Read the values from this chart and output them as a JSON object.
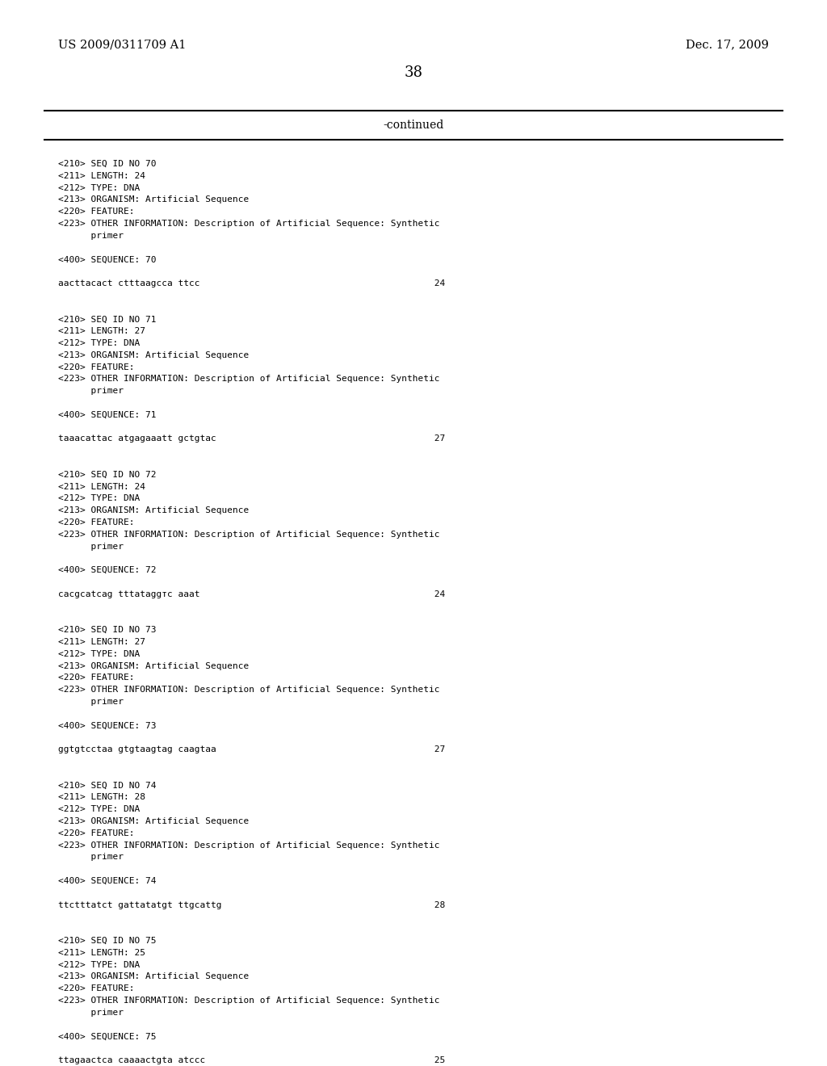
{
  "bg_color": "#ffffff",
  "header_left": "US 2009/0311709 A1",
  "header_right": "Dec. 17, 2009",
  "page_number": "38",
  "continued_text": "-continued",
  "content": [
    "<210> SEQ ID NO 70",
    "<211> LENGTH: 24",
    "<212> TYPE: DNA",
    "<213> ORGANISM: Artificial Sequence",
    "<220> FEATURE:",
    "<223> OTHER INFORMATION: Description of Artificial Sequence: Synthetic",
    "      primer",
    "",
    "<400> SEQUENCE: 70",
    "",
    "aacttacact ctttaagcca ttcc                                           24",
    "",
    "",
    "<210> SEQ ID NO 71",
    "<211> LENGTH: 27",
    "<212> TYPE: DNA",
    "<213> ORGANISM: Artificial Sequence",
    "<220> FEATURE:",
    "<223> OTHER INFORMATION: Description of Artificial Sequence: Synthetic",
    "      primer",
    "",
    "<400> SEQUENCE: 71",
    "",
    "taaacattac atgagaaatt gctgtac                                        27",
    "",
    "",
    "<210> SEQ ID NO 72",
    "<211> LENGTH: 24",
    "<212> TYPE: DNA",
    "<213> ORGANISM: Artificial Sequence",
    "<220> FEATURE:",
    "<223> OTHER INFORMATION: Description of Artificial Sequence: Synthetic",
    "      primer",
    "",
    "<400> SEQUENCE: 72",
    "",
    "cacgcatcag tttataggтc aaat                                           24",
    "",
    "",
    "<210> SEQ ID NO 73",
    "<211> LENGTH: 27",
    "<212> TYPE: DNA",
    "<213> ORGANISM: Artificial Sequence",
    "<220> FEATURE:",
    "<223> OTHER INFORMATION: Description of Artificial Sequence: Synthetic",
    "      primer",
    "",
    "<400> SEQUENCE: 73",
    "",
    "ggtgtcctaa gtgtaagtag caagtaa                                        27",
    "",
    "",
    "<210> SEQ ID NO 74",
    "<211> LENGTH: 28",
    "<212> TYPE: DNA",
    "<213> ORGANISM: Artificial Sequence",
    "<220> FEATURE:",
    "<223> OTHER INFORMATION: Description of Artificial Sequence: Synthetic",
    "      primer",
    "",
    "<400> SEQUENCE: 74",
    "",
    "ttctttatct gattatatgt ttgcattg                                       28",
    "",
    "",
    "<210> SEQ ID NO 75",
    "<211> LENGTH: 25",
    "<212> TYPE: DNA",
    "<213> ORGANISM: Artificial Sequence",
    "<220> FEATURE:",
    "<223> OTHER INFORMATION: Description of Artificial Sequence: Synthetic",
    "      primer",
    "",
    "<400> SEQUENCE: 75",
    "",
    "ttagaactca caaaactgta atccc                                          25"
  ]
}
